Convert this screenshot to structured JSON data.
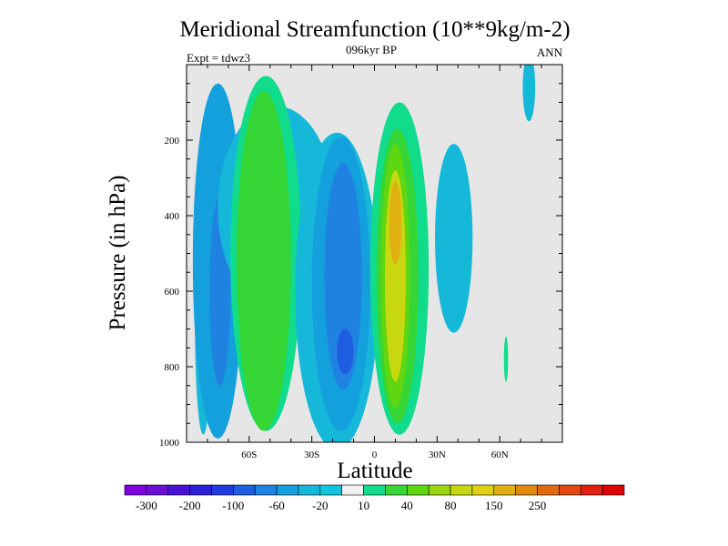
{
  "chart_data": {
    "type": "heatmap",
    "title": "Meridional Streamfunction (10**9kg/m-2)",
    "subtitle": "096kyr BP",
    "left_label": "Expt = tdwz3",
    "right_label": "ANN",
    "xlabel": "Latitude",
    "ylabel": "Pressure (in hPa)",
    "xlim": [
      -90,
      90
    ],
    "ylim": [
      1000,
      0
    ],
    "x_ticks": [
      {
        "value": -60,
        "label": "60S"
      },
      {
        "value": -30,
        "label": "30S"
      },
      {
        "value": 0,
        "label": "0"
      },
      {
        "value": 30,
        "label": "30N"
      },
      {
        "value": 60,
        "label": "60N"
      }
    ],
    "y_ticks": [
      {
        "value": 200,
        "label": "200"
      },
      {
        "value": 400,
        "label": "400"
      },
      {
        "value": 600,
        "label": "600"
      },
      {
        "value": 800,
        "label": "800"
      },
      {
        "value": 1000,
        "label": "1000"
      }
    ],
    "background_color": "#e6e6e6",
    "colorbar": {
      "colors": [
        "#7f00df",
        "#6a0ed8",
        "#4a12d6",
        "#2a20d8",
        "#1f3ae0",
        "#1e5ce0",
        "#1f82e0",
        "#14a0dc",
        "#16b8da",
        "#10c6dc",
        "#f0f0f0",
        "#10dc8c",
        "#36d636",
        "#60d610",
        "#9ad610",
        "#c8d810",
        "#e0d010",
        "#e0b010",
        "#e08a10",
        "#e06a10",
        "#e04810",
        "#e02010",
        "#e00000"
      ],
      "labels": [
        {
          "after_index": 0,
          "label": "-300"
        },
        {
          "after_index": 2,
          "label": "-200"
        },
        {
          "after_index": 4,
          "label": "-100"
        },
        {
          "after_index": 6,
          "label": "-60"
        },
        {
          "after_index": 8,
          "label": "-20"
        },
        {
          "after_index": 10,
          "label": "10"
        },
        {
          "after_index": 12,
          "label": "40"
        },
        {
          "after_index": 14,
          "label": "80"
        },
        {
          "after_index": 16,
          "label": "150"
        },
        {
          "after_index": 18,
          "label": "250"
        }
      ]
    },
    "cells": [
      {
        "name": "cell-sh-polar-outer",
        "x": -82,
        "y": 680,
        "rx": 4,
        "ry": 300,
        "color": "#16b8da"
      },
      {
        "name": "cell-sh-polar",
        "x": -75,
        "y": 520,
        "rx": 12,
        "ry": 470,
        "color": "#14a0dc"
      },
      {
        "name": "cell-sh-polar-core",
        "x": -74,
        "y": 600,
        "rx": 5,
        "ry": 250,
        "color": "#1f82e0"
      },
      {
        "name": "cell-sh-ferrel-outer",
        "x": -47,
        "y": 380,
        "rx": 28,
        "ry": 270,
        "color": "#16b8da"
      },
      {
        "name": "cell-sh-ferrel",
        "x": -52,
        "y": 500,
        "rx": 17,
        "ry": 470,
        "color": "#10dc8c"
      },
      {
        "name": "cell-sh-ferrel-core",
        "x": -53,
        "y": 520,
        "rx": 13,
        "ry": 450,
        "color": "#36d636"
      },
      {
        "name": "cell-sh-hadley-outer",
        "x": -18,
        "y": 600,
        "rx": 20,
        "ry": 420,
        "color": "#16b8da"
      },
      {
        "name": "cell-sh-hadley",
        "x": -16,
        "y": 580,
        "rx": 14,
        "ry": 390,
        "color": "#14a0dc"
      },
      {
        "name": "cell-sh-hadley-mid",
        "x": -15,
        "y": 560,
        "rx": 9,
        "ry": 300,
        "color": "#1f82e0"
      },
      {
        "name": "cell-sh-hadley-core",
        "x": -14,
        "y": 760,
        "rx": 4,
        "ry": 60,
        "color": "#1e5ce0"
      },
      {
        "name": "cell-nh-ferrel",
        "x": 38,
        "y": 460,
        "rx": 9,
        "ry": 250,
        "color": "#16b8da"
      },
      {
        "name": "cell-nh-hadley-outer",
        "x": 12,
        "y": 540,
        "rx": 14,
        "ry": 440,
        "color": "#10dc8c"
      },
      {
        "name": "cell-nh-hadley",
        "x": 11,
        "y": 560,
        "rx": 10,
        "ry": 390,
        "color": "#36d636"
      },
      {
        "name": "cell-nh-hadley-mid",
        "x": 10,
        "y": 560,
        "rx": 7,
        "ry": 350,
        "color": "#60d610"
      },
      {
        "name": "cell-nh-hadley-inner",
        "x": 10,
        "y": 560,
        "rx": 5,
        "ry": 280,
        "color": "#c8d810"
      },
      {
        "name": "cell-nh-hadley-core",
        "x": 10,
        "y": 420,
        "rx": 3,
        "ry": 110,
        "color": "#e0b010"
      },
      {
        "name": "cell-nh-polar",
        "x": 74,
        "y": 60,
        "rx": 3,
        "ry": 90,
        "color": "#16b8da"
      },
      {
        "name": "cell-nh-small",
        "x": 63,
        "y": 780,
        "rx": 1,
        "ry": 60,
        "color": "#10dc8c"
      }
    ]
  }
}
